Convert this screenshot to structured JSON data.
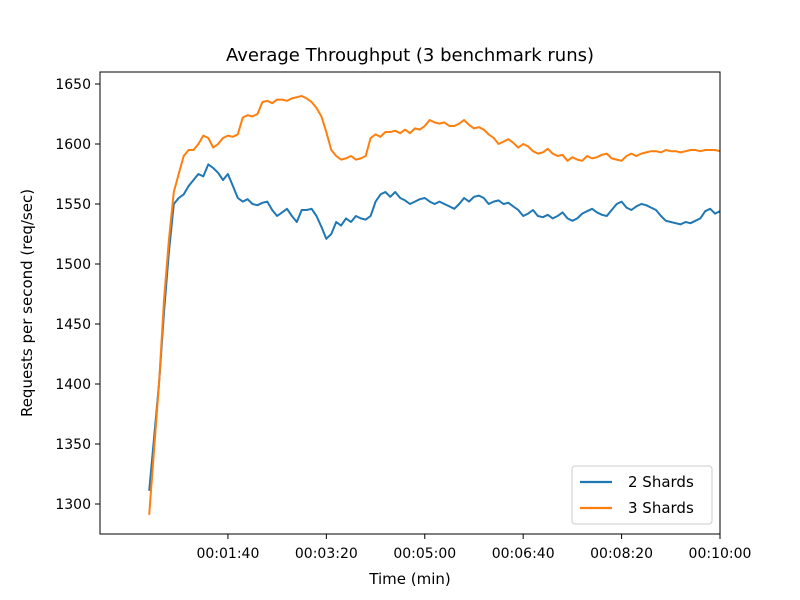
{
  "chart_data": {
    "type": "line",
    "title": "Average Throughput (3 benchmark runs)",
    "xlabel": "Time (min)",
    "ylabel": "Requests per second (req/sec)",
    "x_unit": "seconds",
    "xlim": [
      -30,
      600
    ],
    "ylim": [
      1275,
      1660
    ],
    "xticks": [
      {
        "value": 100,
        "label": "00:01:40"
      },
      {
        "value": 200,
        "label": "00:03:20"
      },
      {
        "value": 300,
        "label": "00:05:00"
      },
      {
        "value": 400,
        "label": "00:06:40"
      },
      {
        "value": 500,
        "label": "00:08:20"
      },
      {
        "value": 600,
        "label": "00:10:00"
      }
    ],
    "yticks": [
      1300,
      1350,
      1400,
      1450,
      1500,
      1550,
      1600,
      1650
    ],
    "legend_position": "lower-right",
    "grid": false,
    "x": [
      20,
      30,
      35,
      40,
      45,
      50,
      55,
      60,
      65,
      70,
      75,
      80,
      85,
      90,
      95,
      100,
      105,
      110,
      115,
      120,
      125,
      130,
      135,
      140,
      145,
      150,
      155,
      160,
      165,
      170,
      175,
      180,
      185,
      190,
      195,
      200,
      205,
      210,
      215,
      220,
      225,
      230,
      235,
      240,
      245,
      250,
      255,
      260,
      265,
      270,
      275,
      280,
      285,
      290,
      295,
      300,
      305,
      310,
      315,
      320,
      325,
      330,
      335,
      340,
      345,
      350,
      355,
      360,
      365,
      370,
      375,
      380,
      385,
      390,
      395,
      400,
      405,
      410,
      415,
      420,
      425,
      430,
      435,
      440,
      445,
      450,
      455,
      460,
      465,
      470,
      475,
      480,
      485,
      490,
      495,
      500,
      505,
      510,
      515,
      520,
      525,
      530,
      535,
      540,
      545,
      550,
      555,
      560,
      565,
      570,
      575,
      580,
      585,
      590,
      595,
      600
    ],
    "series": [
      {
        "name": "2 Shards",
        "color": "#1f77b4",
        "values": [
          1311,
          1400,
          1460,
          1510,
          1550,
          1555,
          1558,
          1565,
          1570,
          1575,
          1573,
          1583,
          1580,
          1576,
          1570,
          1575,
          1565,
          1555,
          1552,
          1554,
          1550,
          1549,
          1551,
          1552,
          1545,
          1540,
          1543,
          1546,
          1540,
          1535,
          1545,
          1545,
          1546,
          1540,
          1531,
          1521,
          1525,
          1535,
          1532,
          1538,
          1535,
          1540,
          1538,
          1537,
          1540,
          1552,
          1558,
          1560,
          1556,
          1560,
          1555,
          1553,
          1550,
          1552,
          1554,
          1555,
          1552,
          1550,
          1552,
          1550,
          1548,
          1546,
          1550,
          1555,
          1552,
          1556,
          1557,
          1555,
          1550,
          1552,
          1553,
          1550,
          1551,
          1548,
          1545,
          1540,
          1542,
          1545,
          1540,
          1539,
          1541,
          1538,
          1540,
          1543,
          1538,
          1536,
          1538,
          1542,
          1544,
          1546,
          1543,
          1541,
          1540,
          1545,
          1550,
          1552,
          1547,
          1545,
          1548,
          1550,
          1549,
          1547,
          1545,
          1540,
          1536,
          1535,
          1534,
          1533,
          1535,
          1534,
          1536,
          1538,
          1544,
          1546,
          1542,
          1544
        ]
      },
      {
        "name": "3 Shards",
        "color": "#ff7f0e",
        "values": [
          1291,
          1400,
          1470,
          1520,
          1560,
          1575,
          1590,
          1595,
          1595,
          1600,
          1607,
          1605,
          1597,
          1600,
          1605,
          1607,
          1606,
          1608,
          1622,
          1624,
          1623,
          1625,
          1635,
          1636,
          1634,
          1637,
          1637,
          1636,
          1638,
          1639,
          1640,
          1638,
          1635,
          1630,
          1623,
          1610,
          1595,
          1590,
          1587,
          1588,
          1590,
          1587,
          1588,
          1590,
          1605,
          1608,
          1606,
          1610,
          1610,
          1611,
          1609,
          1612,
          1609,
          1613,
          1612,
          1615,
          1620,
          1618,
          1617,
          1618,
          1615,
          1615,
          1617,
          1620,
          1616,
          1613,
          1614,
          1612,
          1608,
          1605,
          1600,
          1602,
          1604,
          1601,
          1597,
          1600,
          1598,
          1594,
          1592,
          1593,
          1596,
          1592,
          1590,
          1591,
          1586,
          1589,
          1587,
          1586,
          1590,
          1588,
          1589,
          1591,
          1592,
          1588,
          1587,
          1586,
          1590,
          1592,
          1590,
          1592,
          1593,
          1594,
          1594,
          1593,
          1595,
          1594,
          1594,
          1593,
          1594,
          1595,
          1595,
          1594,
          1595,
          1595,
          1595,
          1594
        ]
      }
    ]
  }
}
